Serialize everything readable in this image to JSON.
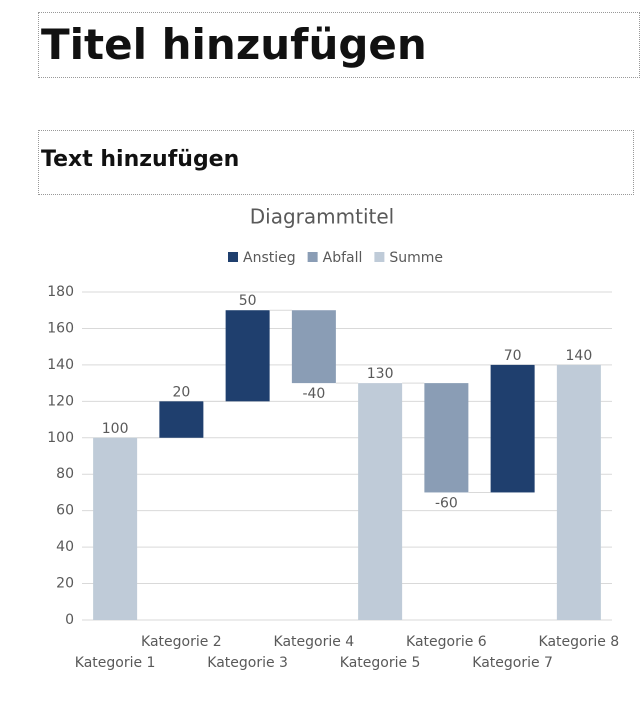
{
  "slide": {
    "title": "Titel hinzufügen",
    "text": "Text hinzufügen"
  },
  "chart_data": {
    "type": "waterfall",
    "title": "Diagrammtitel",
    "categories": [
      "Kategorie 1",
      "Kategorie 2",
      "Kategorie 3",
      "Kategorie 4",
      "Kategorie 5",
      "Kategorie 6",
      "Kategorie 7",
      "Kategorie 8"
    ],
    "series": [
      {
        "name": "Anstieg",
        "color": "#1f3f6e",
        "values": [
          null,
          20,
          50,
          null,
          null,
          null,
          70,
          null
        ]
      },
      {
        "name": "Abfall",
        "color": "#8a9db5",
        "values": [
          null,
          null,
          null,
          -40,
          null,
          -60,
          null,
          null
        ]
      },
      {
        "name": "Summe",
        "color": "#bfcbd8",
        "values": [
          100,
          null,
          null,
          null,
          130,
          null,
          null,
          140
        ]
      }
    ],
    "ylim": [
      0,
      180
    ],
    "yticks": [
      0,
      20,
      40,
      60,
      80,
      100,
      120,
      140,
      160,
      180
    ],
    "grid": true,
    "legend": "top"
  }
}
